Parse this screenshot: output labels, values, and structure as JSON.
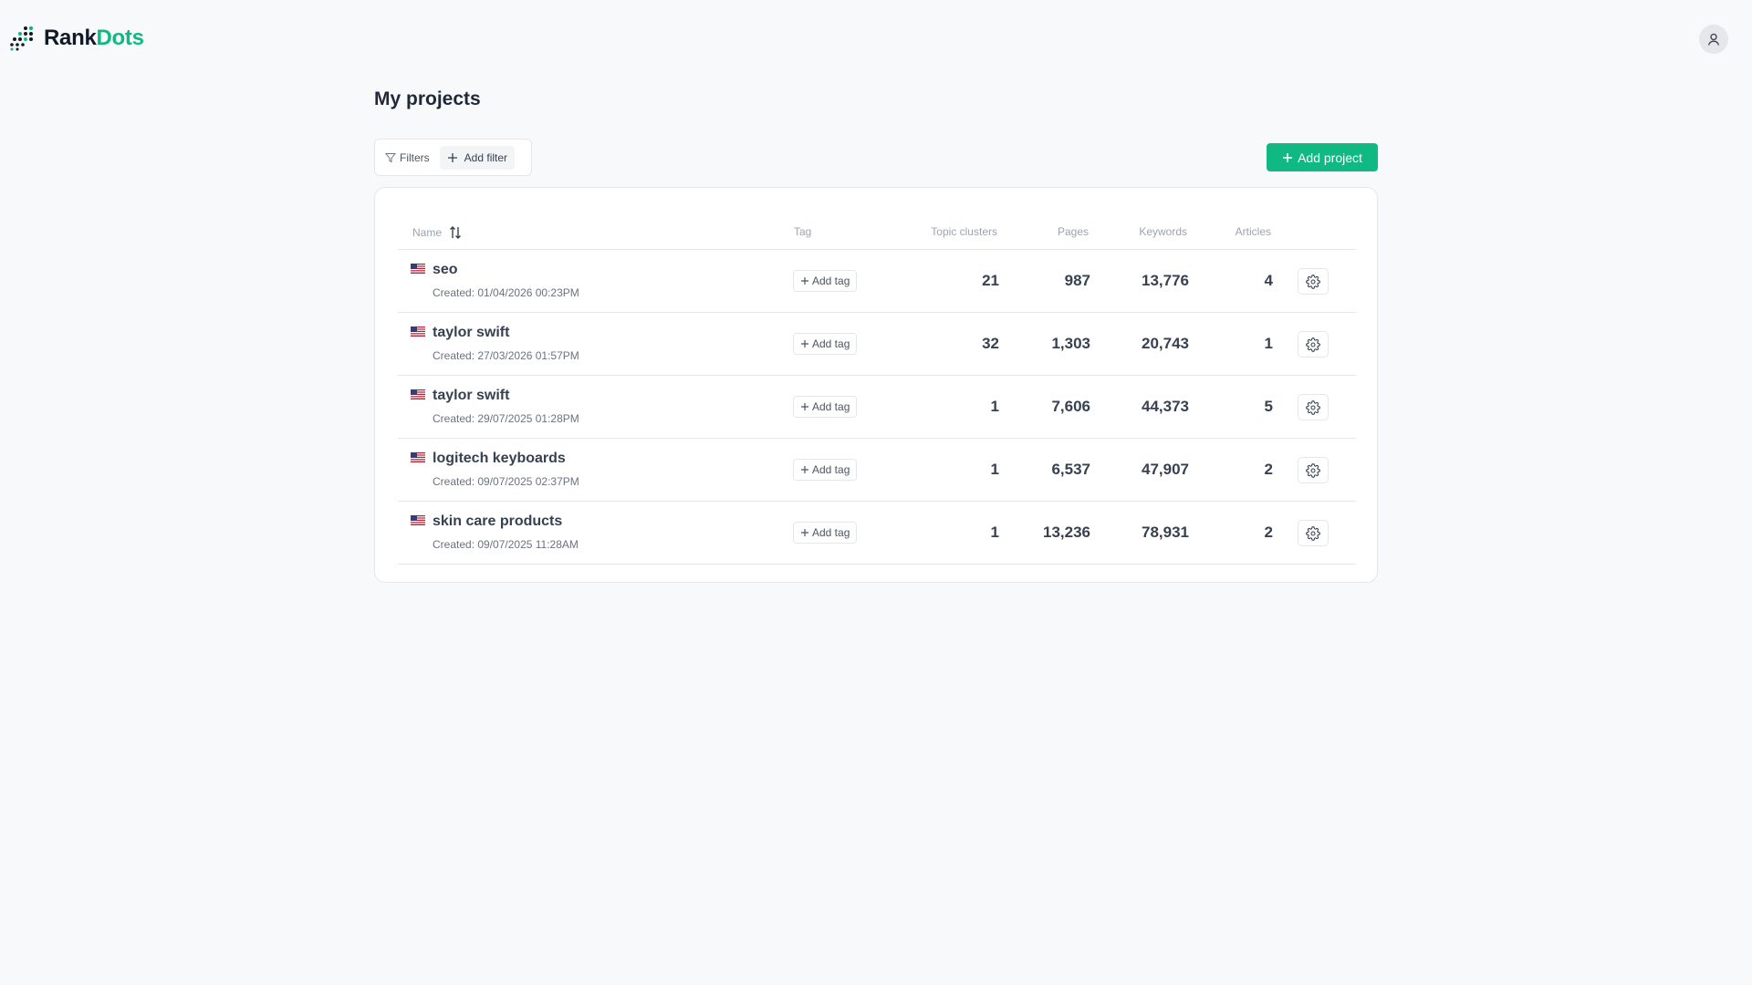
{
  "brand": {
    "rank": "Rank",
    "dots": "Dots",
    "accent": "#10b981",
    "logo_icon": "dots-grid-icon"
  },
  "header": {
    "avatar_icon": "user-icon"
  },
  "page": {
    "title": "My projects"
  },
  "toolbar": {
    "filters_label": "Filters",
    "add_filter_label": "Add filter",
    "add_project_label": "Add project"
  },
  "table": {
    "columns": {
      "name": "Name",
      "tag": "Tag",
      "topic_clusters": "Topic clusters",
      "pages": "Pages",
      "keywords": "Keywords",
      "articles": "Articles"
    },
    "add_tag_label": "Add tag",
    "rows": [
      {
        "flag": "us-flag-icon",
        "name": "seo",
        "created": "Created: 01/04/2026 00:23PM",
        "topic_clusters": "21",
        "pages": "987",
        "keywords": "13,776",
        "articles": "4"
      },
      {
        "flag": "us-flag-icon",
        "name": "taylor swift",
        "created": "Created: 27/03/2026 01:57PM",
        "topic_clusters": "32",
        "pages": "1,303",
        "keywords": "20,743",
        "articles": "1"
      },
      {
        "flag": "us-flag-icon",
        "name": "taylor swift",
        "created": "Created: 29/07/2025 01:28PM",
        "topic_clusters": "1",
        "pages": "7,606",
        "keywords": "44,373",
        "articles": "5"
      },
      {
        "flag": "us-flag-icon",
        "name": "logitech keyboards",
        "created": "Created: 09/07/2025 02:37PM",
        "topic_clusters": "1",
        "pages": "6,537",
        "keywords": "47,907",
        "articles": "2"
      },
      {
        "flag": "us-flag-icon",
        "name": "skin care products",
        "created": "Created: 09/07/2025 11:28AM",
        "topic_clusters": "1",
        "pages": "13,236",
        "keywords": "78,931",
        "articles": "2"
      }
    ]
  }
}
